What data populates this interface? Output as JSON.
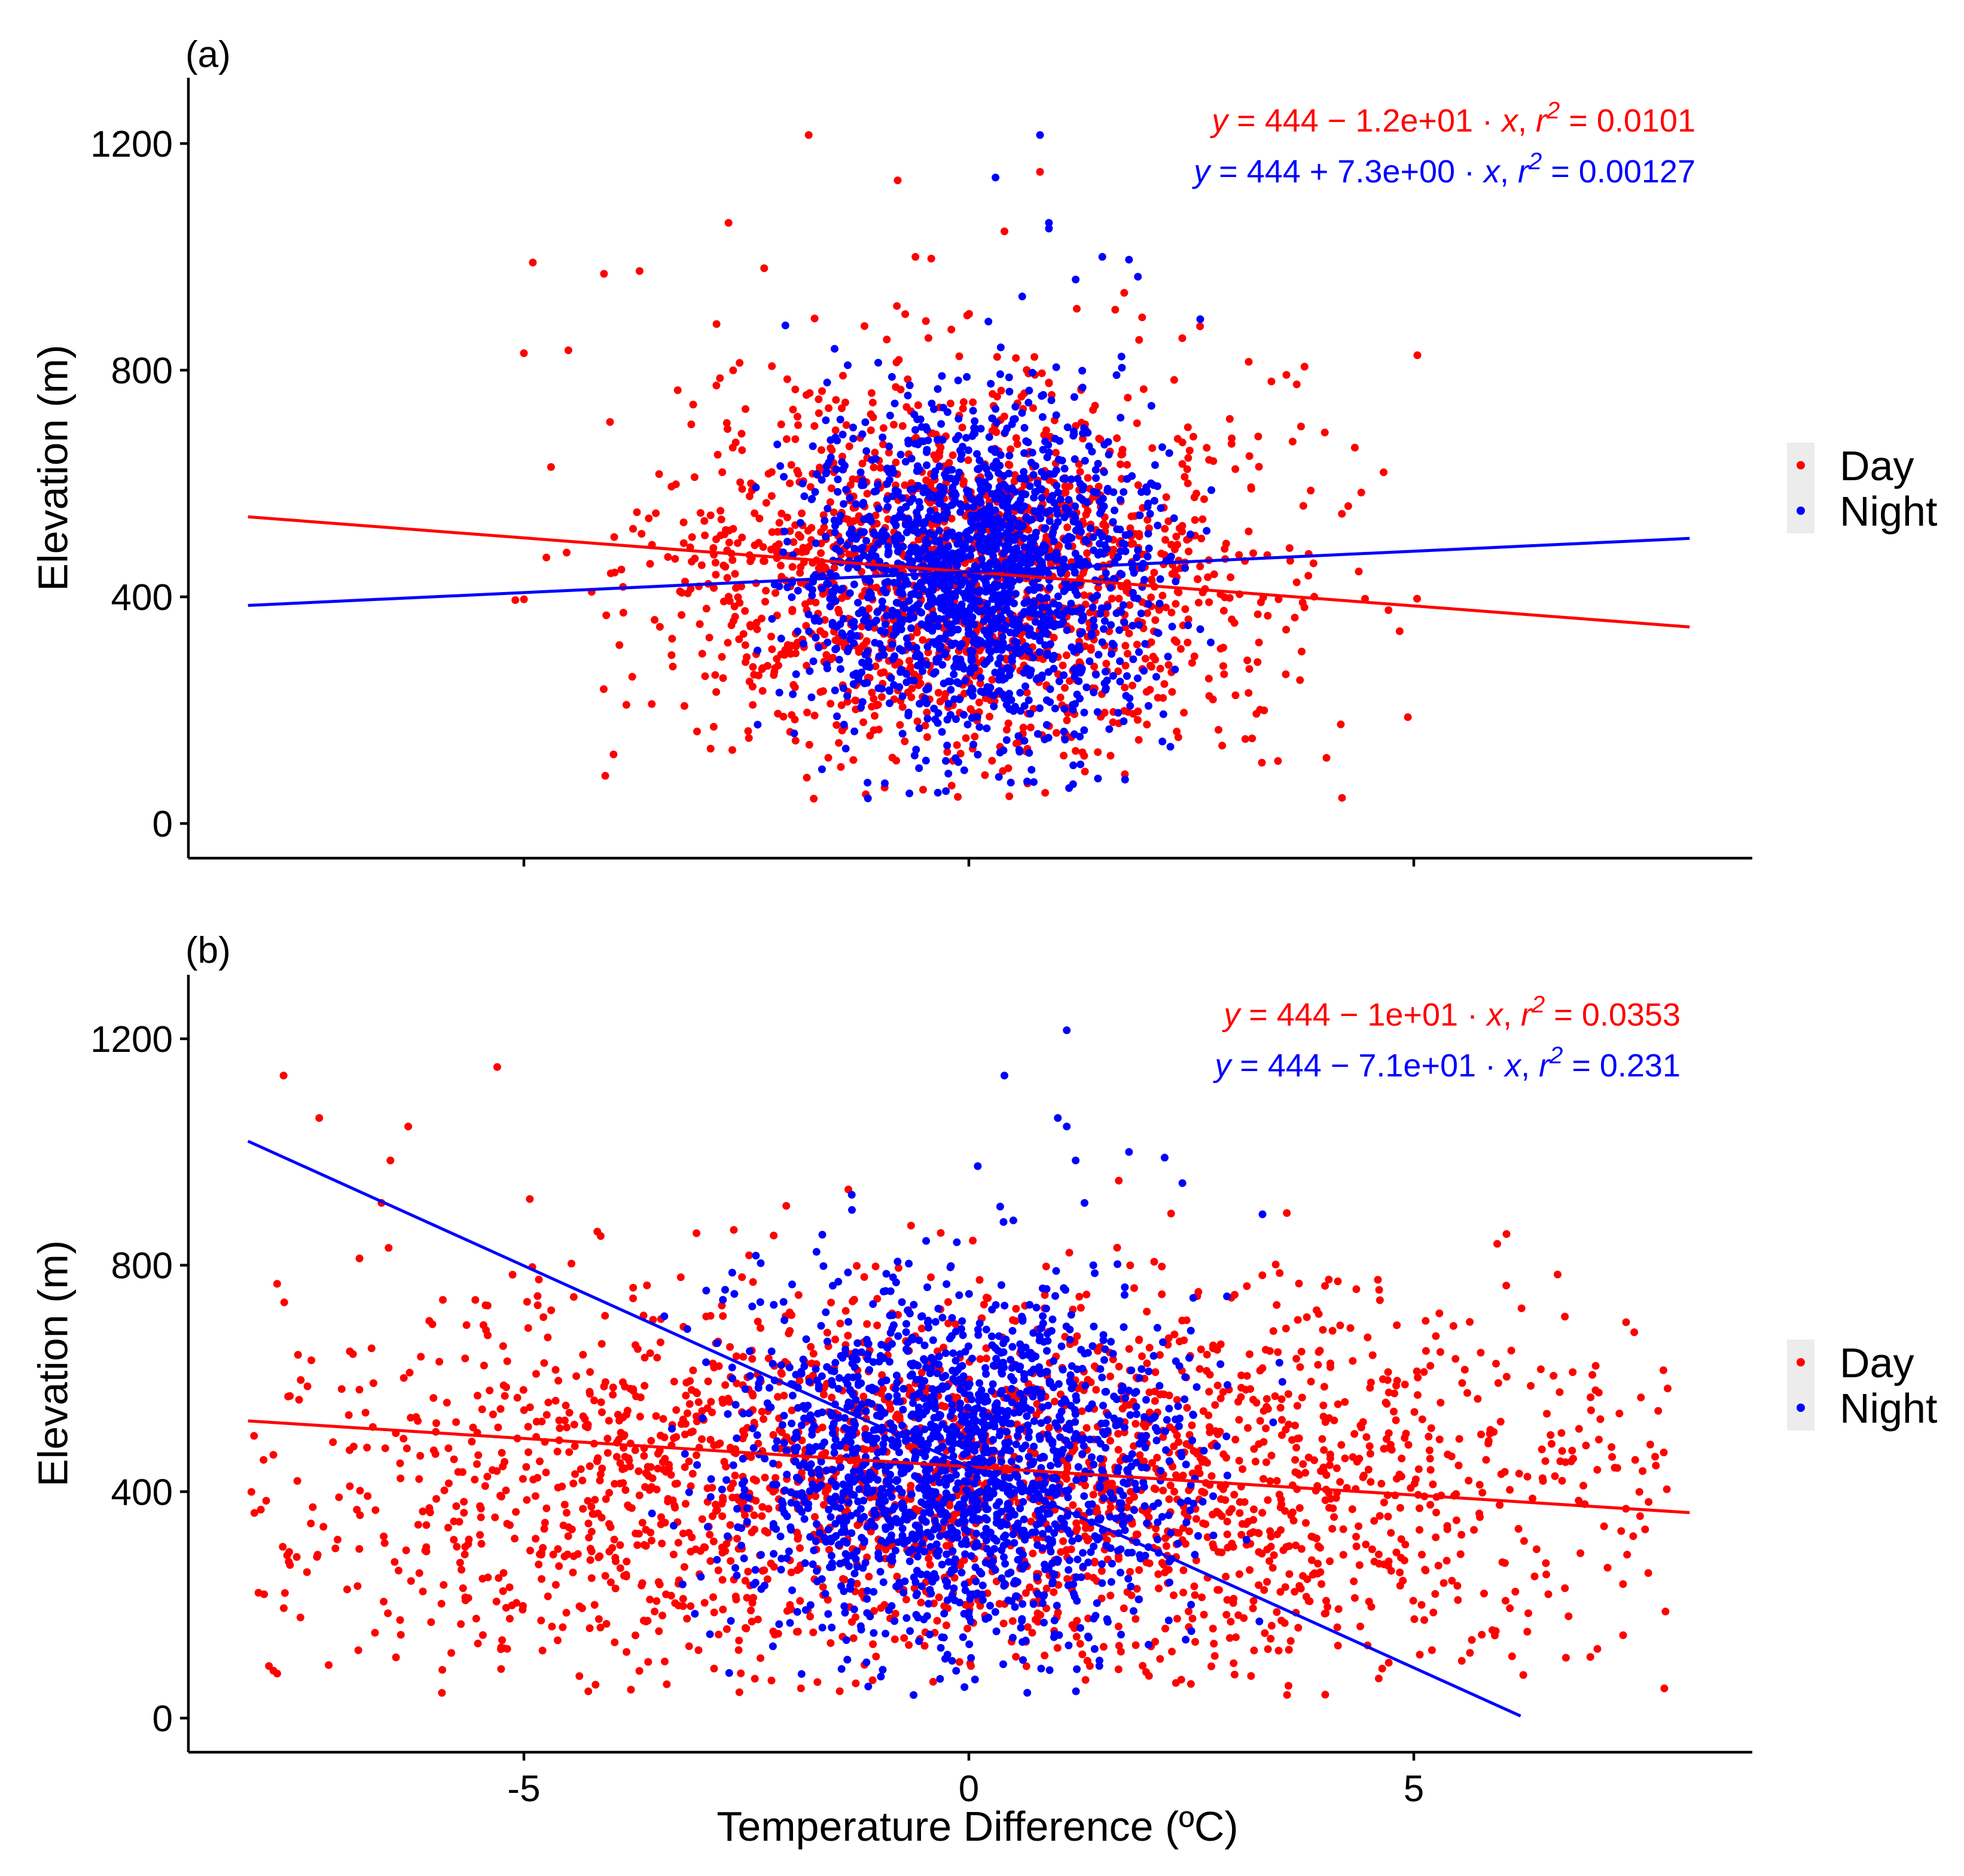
{
  "chart_data": [
    {
      "type": "scatter",
      "panel_label": "(a)",
      "xlabel": "",
      "ylabel": "Elevation (m)",
      "xlim": [
        -8.8,
        8.8
      ],
      "ylim": [
        -60,
        1310
      ],
      "xticks": [
        -5,
        0,
        5
      ],
      "xtick_labels": [
        "",
        "",
        ""
      ],
      "yticks": [
        0,
        400,
        800,
        1200
      ],
      "ytick_labels": [
        "0",
        "400",
        "800",
        "1200"
      ],
      "grid": false,
      "legend_position": "right",
      "series": [
        {
          "name": "Day",
          "color": "#FF0000",
          "fit": {
            "intercept": 444,
            "slope": -12,
            "x_range": [
              -8.1,
              8.1
            ]
          },
          "equation": {
            "lhs": "y",
            "rhs": " = 444 − 1.2e+01 · ",
            "var": "x",
            "sep": ",  ",
            "r": "r",
            "exp": "2",
            "rhs2": " = 0.0101"
          },
          "cloud": {
            "center": [
              0,
              440
            ],
            "sx": 1.7,
            "sy": 170,
            "n": 1600,
            "x_range": [
              -5.2,
              5.1
            ],
            "y_range": [
              40,
              1200
            ]
          },
          "outliers": [
            [
              -1.8,
              1215
            ],
            [
              0.8,
              1150
            ],
            [
              -0.8,
              1135
            ],
            [
              -2.7,
              1060
            ],
            [
              0.4,
              1045
            ],
            [
              -4.9,
              990
            ],
            [
              -3.7,
              975
            ],
            [
              -4.1,
              970
            ],
            [
              -2.3,
              980
            ],
            [
              -0.6,
              1000
            ],
            [
              -4.5,
              835
            ],
            [
              -5.0,
              830
            ],
            [
              3.4,
              780
            ],
            [
              4.0,
              690
            ]
          ]
        },
        {
          "name": "Night",
          "color": "#0000FF",
          "fit": {
            "intercept": 444,
            "slope": 7.3,
            "x_range": [
              -8.1,
              8.1
            ]
          },
          "equation": {
            "lhs": "y",
            "rhs": " = 444 + 7.3e+00 · ",
            "var": "x",
            "sep": ",  ",
            "r": "r",
            "exp": "2",
            "rhs2": " = 0.00127"
          },
          "cloud": {
            "center": [
              0.1,
              440
            ],
            "sx": 0.95,
            "sy": 150,
            "n": 1700,
            "x_range": [
              -2.6,
              2.8
            ],
            "y_range": [
              40,
              1220
            ]
          },
          "outliers": [
            [
              0.8,
              1215
            ],
            [
              0.3,
              1140
            ],
            [
              0.9,
              1060
            ],
            [
              0.9,
              1050
            ],
            [
              1.5,
              1000
            ],
            [
              1.8,
              995
            ],
            [
              2.6,
              890
            ],
            [
              1.2,
              960
            ],
            [
              1.9,
              965
            ],
            [
              0.6,
              930
            ]
          ]
        }
      ]
    },
    {
      "type": "scatter",
      "panel_label": "(b)",
      "xlabel": "Temperature Difference (ºC)",
      "ylabel": "Elevation (m)",
      "xlim": [
        -8.8,
        8.8
      ],
      "ylim": [
        -60,
        1310
      ],
      "xticks": [
        -5,
        0,
        5
      ],
      "xtick_labels": [
        "-5",
        "0",
        "5"
      ],
      "yticks": [
        0,
        400,
        800,
        1200
      ],
      "ytick_labels": [
        "0",
        "400",
        "800",
        "1200"
      ],
      "grid": false,
      "legend_position": "right",
      "series": [
        {
          "name": "Day",
          "color": "#FF0000",
          "fit": {
            "intercept": 444,
            "slope": -10,
            "x_range": [
              -8.1,
              8.1
            ]
          },
          "equation": {
            "lhs": "y",
            "rhs": " = 444 − 1e+01 · ",
            "var": "x",
            "sep": ",  ",
            "r": "r",
            "exp": "2",
            "rhs2": " = 0.0353"
          },
          "cloud": {
            "center": [
              0,
              410
            ],
            "sx": 4.2,
            "sy": 170,
            "n": 2400,
            "x_range": [
              -8.1,
              7.9
            ],
            "y_range": [
              40,
              1160
            ]
          },
          "outliers": [
            [
              -7.7,
              1135
            ],
            [
              -5.3,
              1150
            ],
            [
              -7.3,
              1060
            ],
            [
              -6.3,
              1045
            ],
            [
              -6.5,
              985
            ],
            [
              -6.6,
              910
            ]
          ]
        },
        {
          "name": "Night",
          "color": "#0000FF",
          "fit": {
            "intercept": 444,
            "slope": -71,
            "x_range": [
              -8.1,
              6.2
            ]
          },
          "equation": {
            "lhs": "y",
            "rhs": " = 444 − 7.1e+01 · ",
            "var": "x",
            "sep": ",  ",
            "r": "r",
            "exp": "2",
            "rhs2": " = 0.231"
          },
          "cloud": {
            "center": [
              -0.2,
              440
            ],
            "sx": 1.25,
            "sy": 150,
            "n": 1800,
            "x_range": [
              -3.6,
              3.6
            ],
            "y_range": [
              40,
              1220
            ]
          },
          "outliers": [
            [
              1.1,
              1215
            ],
            [
              0.4,
              1135
            ],
            [
              1.0,
              1060
            ],
            [
              1.1,
              1045
            ],
            [
              1.8,
              1000
            ],
            [
              2.2,
              990
            ],
            [
              2.4,
              945
            ],
            [
              1.3,
              910
            ],
            [
              3.3,
              890
            ],
            [
              0.1,
              975
            ],
            [
              1.2,
              985
            ]
          ]
        }
      ]
    }
  ],
  "legend": {
    "items": [
      {
        "label": "Day",
        "color": "#FF0000"
      },
      {
        "label": "Night",
        "color": "#0000FF"
      }
    ]
  }
}
